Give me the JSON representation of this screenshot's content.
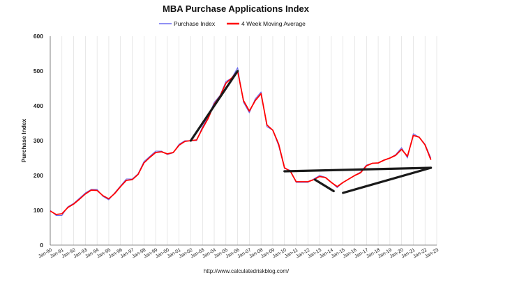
{
  "chart_data": {
    "type": "line",
    "title": "MBA Purchase Applications Index",
    "ylabel": "Purchase Index",
    "xlabel": "",
    "ylim": [
      0,
      600
    ],
    "xlim": [
      1990.0,
      2023.0
    ],
    "yticks": [
      0,
      100,
      200,
      300,
      400,
      500,
      600
    ],
    "xtick_labels": [
      "Jan-90",
      "Jan-91",
      "Jan-92",
      "Jan-93",
      "Jan-94",
      "Jan-95",
      "Jan-96",
      "Jan-97",
      "Jan-98",
      "Jan-99",
      "Jan-00",
      "Jan-01",
      "Jan-02",
      "Jan-03",
      "Jan-04",
      "Jan-05",
      "Jan-06",
      "Jan-07",
      "Jan-08",
      "Jan-09",
      "Jan-10",
      "Jan-11",
      "Jan-12",
      "Jan-13",
      "Jan-14",
      "Jan-15",
      "Jan-16",
      "Jan-17",
      "Jan-18",
      "Jan-19",
      "Jan-20",
      "Jan-21",
      "Jan-22",
      "Jan-23"
    ],
    "grid": "vertical",
    "legend_position": "top-center",
    "footer": "http://www.calculatedriskblog.com/",
    "colors": {
      "purchase_index": "#6b6bf0",
      "moving_average": "#ff0000",
      "trend_lines": "#1a1a1a"
    },
    "series": [
      {
        "name": "Purchase Index",
        "x": [
          1990.0,
          1990.5,
          1991.0,
          1991.5,
          1992.0,
          1992.5,
          1993.0,
          1993.5,
          1994.0,
          1994.5,
          1995.0,
          1995.5,
          1996.0,
          1996.5,
          1997.0,
          1997.5,
          1998.0,
          1998.5,
          1999.0,
          1999.5,
          2000.0,
          2000.5,
          2001.0,
          2001.5,
          2002.0,
          2002.5,
          2003.0,
          2003.5,
          2004.0,
          2004.5,
          2005.0,
          2005.5,
          2006.0,
          2006.5,
          2007.0,
          2007.5,
          2008.0,
          2008.5,
          2009.0,
          2009.5,
          2010.0,
          2010.5,
          2011.0,
          2011.5,
          2012.0,
          2012.5,
          2013.0,
          2013.5,
          2014.0,
          2014.5,
          2015.0,
          2015.5,
          2016.0,
          2016.5,
          2017.0,
          2017.5,
          2018.0,
          2018.5,
          2019.0,
          2019.5,
          2020.0,
          2020.5,
          2021.0,
          2021.5,
          2022.0,
          2022.5
        ],
        "values": [
          100,
          85,
          85,
          110,
          120,
          135,
          150,
          160,
          160,
          140,
          130,
          150,
          170,
          190,
          190,
          205,
          240,
          255,
          270,
          270,
          260,
          265,
          290,
          300,
          300,
          300,
          340,
          370,
          410,
          430,
          470,
          480,
          510,
          410,
          380,
          420,
          440,
          340,
          330,
          285,
          220,
          215,
          180,
          180,
          180,
          190,
          200,
          195,
          180,
          165,
          180,
          190,
          200,
          210,
          230,
          235,
          235,
          245,
          250,
          260,
          280,
          250,
          320,
          310,
          290,
          250
        ]
      },
      {
        "name": "4 Week Moving Average",
        "x": [
          1990.0,
          1990.5,
          1991.0,
          1991.5,
          1992.0,
          1992.5,
          1993.0,
          1993.5,
          1994.0,
          1994.5,
          1995.0,
          1995.5,
          1996.0,
          1996.5,
          1997.0,
          1997.5,
          1998.0,
          1998.5,
          1999.0,
          1999.5,
          2000.0,
          2000.5,
          2001.0,
          2001.5,
          2002.0,
          2002.5,
          2003.0,
          2003.5,
          2004.0,
          2004.5,
          2005.0,
          2005.5,
          2006.0,
          2006.5,
          2007.0,
          2007.5,
          2008.0,
          2008.5,
          2009.0,
          2009.5,
          2010.0,
          2010.5,
          2011.0,
          2011.5,
          2012.0,
          2012.5,
          2013.0,
          2013.5,
          2014.0,
          2014.5,
          2015.0,
          2015.5,
          2016.0,
          2016.5,
          2017.0,
          2017.5,
          2018.0,
          2018.5,
          2019.0,
          2019.5,
          2020.0,
          2020.5,
          2021.0,
          2021.5,
          2022.0,
          2022.5
        ],
        "values": [
          98,
          88,
          90,
          108,
          118,
          132,
          147,
          158,
          157,
          142,
          133,
          148,
          168,
          186,
          188,
          203,
          236,
          252,
          266,
          268,
          262,
          266,
          287,
          298,
          300,
          302,
          335,
          365,
          405,
          428,
          465,
          480,
          500,
          415,
          385,
          415,
          435,
          345,
          330,
          290,
          222,
          212,
          182,
          182,
          182,
          188,
          197,
          194,
          180,
          168,
          180,
          190,
          200,
          208,
          228,
          235,
          236,
          244,
          250,
          258,
          275,
          255,
          315,
          310,
          288,
          245
        ]
      }
    ],
    "annotation_lines": [
      {
        "x": [
          2002.0,
          2006.0
        ],
        "values": [
          300,
          500
        ]
      },
      {
        "x": [
          2010.0,
          2022.5
        ],
        "values": [
          212,
          222
        ]
      },
      {
        "x": [
          2012.6,
          2014.2
        ],
        "values": [
          188,
          155
        ]
      },
      {
        "x": [
          2015.0,
          2022.5
        ],
        "values": [
          150,
          222
        ]
      }
    ]
  }
}
